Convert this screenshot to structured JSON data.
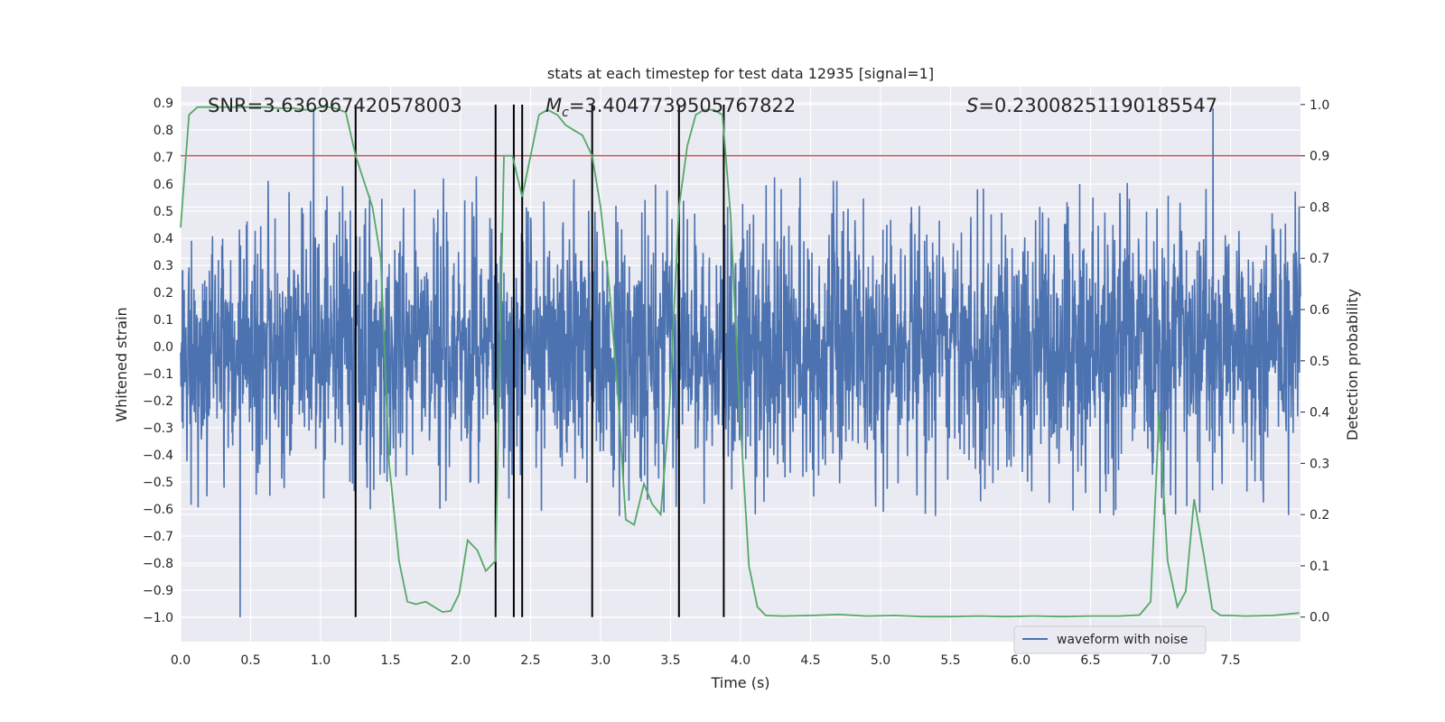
{
  "chart_data": {
    "type": "line",
    "title": "stats at each timestep for test data 12935 [signal=1]",
    "xlabel": "Time (s)",
    "ylabel": "Whitened strain",
    "y2label": "Detection probability",
    "xlim": [
      0.0,
      8.0
    ],
    "ylim": [
      -1.09,
      0.96
    ],
    "y2lim": [
      -0.048,
      1.035
    ],
    "xticks": [
      "0.0",
      "0.5",
      "1.0",
      "1.5",
      "2.0",
      "2.5",
      "3.0",
      "3.5",
      "4.0",
      "4.5",
      "5.0",
      "5.5",
      "6.0",
      "6.5",
      "7.0",
      "7.5"
    ],
    "xtick_values": [
      0.0,
      0.5,
      1.0,
      1.5,
      2.0,
      2.5,
      3.0,
      3.5,
      4.0,
      4.5,
      5.0,
      5.5,
      6.0,
      6.5,
      7.0,
      7.5
    ],
    "yticks": [
      "0.9",
      "0.8",
      "0.7",
      "0.6",
      "0.5",
      "0.4",
      "0.3",
      "0.2",
      "0.1",
      "0.0",
      "−0.1",
      "−0.2",
      "−0.3",
      "−0.4",
      "−0.5",
      "−0.6",
      "−0.7",
      "−0.8",
      "−0.9",
      "−1.0"
    ],
    "ytick_values": [
      0.9,
      0.8,
      0.7,
      0.6,
      0.5,
      0.4,
      0.3,
      0.2,
      0.1,
      0.0,
      -0.1,
      -0.2,
      -0.3,
      -0.4,
      -0.5,
      -0.6,
      -0.7,
      -0.8,
      -0.9,
      -1.0
    ],
    "y2ticks": [
      "1.0",
      "0.9",
      "0.8",
      "0.7",
      "0.6",
      "0.5",
      "0.4",
      "0.3",
      "0.2",
      "0.1",
      "0.0"
    ],
    "y2tick_values": [
      1.0,
      0.9,
      0.8,
      0.7,
      0.6,
      0.5,
      0.4,
      0.3,
      0.2,
      0.1,
      0.0
    ],
    "stats": {
      "snr": "SNR=3.636967420578003",
      "mc_prefix": "M",
      "mc_sub": "c",
      "mc_value": "=3.4047739505767822",
      "s_prefix": "S",
      "s_value": "=0.23008251190185547"
    },
    "threshold": 0.9,
    "vlines": [
      1.25,
      2.25,
      2.38,
      2.44,
      2.94,
      3.56,
      3.88
    ],
    "vline_range": [
      0.0,
      1.0
    ],
    "series": [
      {
        "name": "waveform with noise",
        "axis": "left",
        "color": "#4c72b0",
        "style": "noise",
        "noise_band": 0.32,
        "noise_peak_max": 0.88,
        "noise_peak_min": -1.0
      },
      {
        "name": "detection probability",
        "axis": "right",
        "color": "#55a868",
        "x": [
          0.0,
          0.06,
          0.12,
          0.2,
          0.3,
          0.4,
          0.5,
          0.6,
          0.7,
          0.8,
          0.88,
          0.94,
          1.0,
          1.06,
          1.1,
          1.18,
          1.25,
          1.31,
          1.37,
          1.43,
          1.49,
          1.56,
          1.62,
          1.68,
          1.75,
          1.81,
          1.87,
          1.93,
          1.99,
          2.05,
          2.12,
          2.18,
          2.25,
          2.31,
          2.37,
          2.44,
          2.5,
          2.56,
          2.62,
          2.69,
          2.75,
          2.81,
          2.87,
          2.94,
          3.0,
          3.06,
          3.12,
          3.18,
          3.24,
          3.31,
          3.37,
          3.43,
          3.49,
          3.56,
          3.62,
          3.68,
          3.74,
          3.81,
          3.87,
          3.93,
          3.99,
          4.06,
          4.12,
          4.18,
          4.3,
          4.5,
          4.7,
          4.9,
          5.1,
          5.3,
          5.5,
          5.7,
          5.9,
          6.1,
          6.3,
          6.5,
          6.7,
          6.85,
          6.93,
          6.99,
          7.05,
          7.12,
          7.18,
          7.24,
          7.31,
          7.37,
          7.43,
          7.5,
          7.6,
          7.8,
          7.99
        ],
        "y": [
          0.76,
          0.98,
          0.995,
          0.995,
          0.995,
          0.995,
          0.995,
          0.995,
          0.993,
          0.993,
          0.99,
          0.99,
          0.995,
          0.995,
          0.993,
          0.985,
          0.9,
          0.85,
          0.8,
          0.7,
          0.3,
          0.11,
          0.03,
          0.025,
          0.03,
          0.02,
          0.01,
          0.012,
          0.045,
          0.15,
          0.13,
          0.09,
          0.11,
          0.9,
          0.9,
          0.82,
          0.9,
          0.98,
          0.99,
          0.98,
          0.96,
          0.95,
          0.94,
          0.9,
          0.8,
          0.65,
          0.45,
          0.19,
          0.18,
          0.26,
          0.22,
          0.2,
          0.4,
          0.8,
          0.92,
          0.98,
          0.99,
          0.99,
          0.98,
          0.78,
          0.42,
          0.1,
          0.02,
          0.003,
          0.002,
          0.003,
          0.005,
          0.002,
          0.003,
          0.001,
          0.001,
          0.002,
          0.001,
          0.002,
          0.001,
          0.002,
          0.002,
          0.004,
          0.03,
          0.4,
          0.11,
          0.02,
          0.05,
          0.23,
          0.12,
          0.015,
          0.003,
          0.003,
          0.002,
          0.003,
          0.008
        ]
      }
    ],
    "legend": {
      "entries": [
        "waveform with noise"
      ],
      "position": "lower-right"
    }
  }
}
